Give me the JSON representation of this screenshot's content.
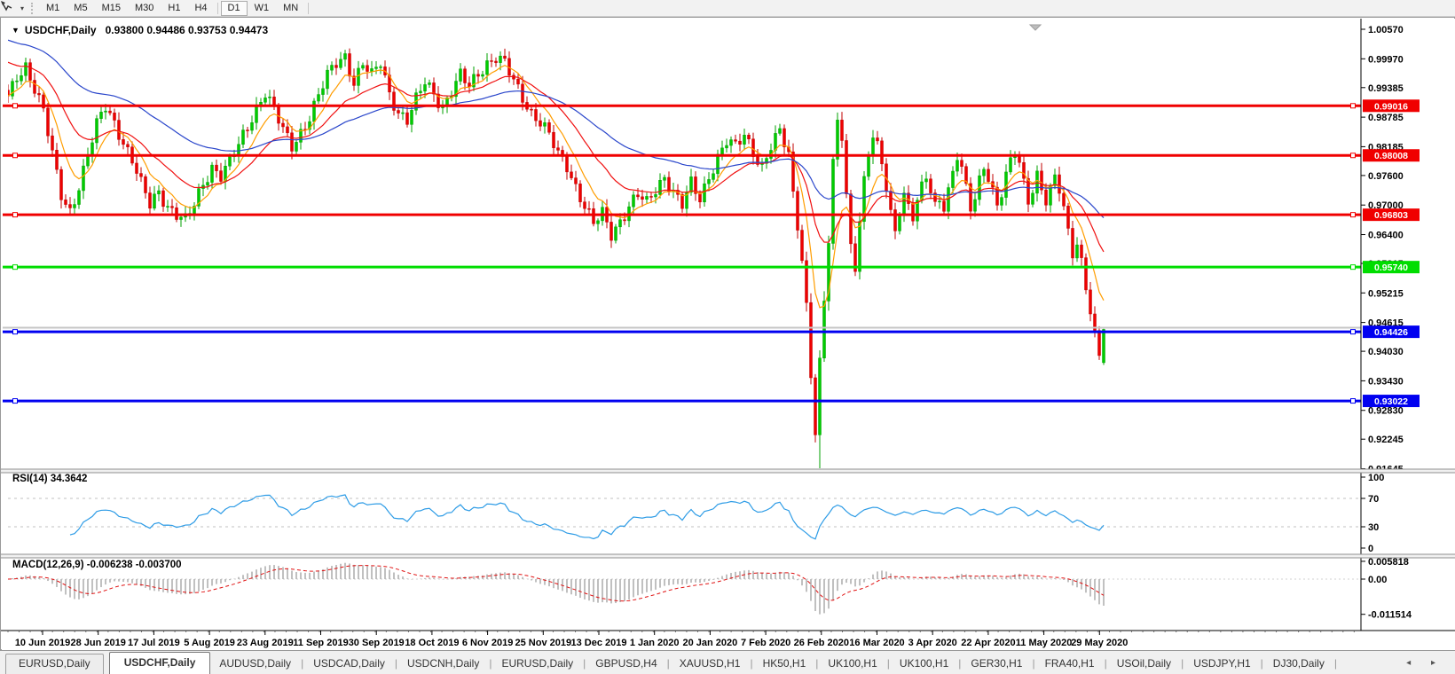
{
  "toolbar": {
    "tool_icon": "crosshair-cursor-icon",
    "timeframes": [
      {
        "label": "M1",
        "active": false
      },
      {
        "label": "M5",
        "active": false
      },
      {
        "label": "M15",
        "active": false
      },
      {
        "label": "M30",
        "active": false
      },
      {
        "label": "H1",
        "active": false
      },
      {
        "label": "H4",
        "active": false
      },
      {
        "label": "D1",
        "active": true
      },
      {
        "label": "W1",
        "active": false
      },
      {
        "label": "MN",
        "active": false
      }
    ]
  },
  "chart": {
    "symbol_caret": "▼",
    "title_symbol": "USDCHF,Daily",
    "ohlc_text": "0.93800 0.94486 0.93753 0.94473",
    "price_axis_ticks": [
      "1.00570",
      "0.99970",
      "0.99385",
      "0.98785",
      "0.98185",
      "0.97600",
      "0.97000",
      "0.96400",
      "0.95815",
      "0.95215",
      "0.94615",
      "0.94030",
      "0.93430",
      "0.92830",
      "0.92245",
      "0.91645"
    ],
    "date_labels": [
      "10 Jun 2019",
      "28 Jun 2019",
      "17 Jul 2019",
      "5 Aug 2019",
      "23 Aug 2019",
      "11 Sep 2019",
      "30 Sep 2019",
      "18 Oct 2019",
      "6 Nov 2019",
      "25 Nov 2019",
      "13 Dec 2019",
      "1 Jan 2020",
      "20 Jan 2020",
      "7 Feb 2020",
      "26 Feb 2020",
      "16 Mar 2020",
      "3 Apr 2020",
      "22 Apr 2020",
      "11 May 2020",
      "29 May 2020"
    ],
    "hlines": [
      {
        "price": 0.99016,
        "label": "0.99016",
        "color": "#F00000",
        "kind": "resistance"
      },
      {
        "price": 0.98008,
        "label": "0.98008",
        "color": "#F00000",
        "kind": "resistance"
      },
      {
        "price": 0.96803,
        "label": "0.96803",
        "color": "#F00000",
        "kind": "resistance"
      },
      {
        "price": 0.9574,
        "label": "0.95740",
        "color": "#00DD00",
        "kind": "support"
      },
      {
        "price": 0.94426,
        "label": "0.94426",
        "color": "#0000F0",
        "kind": "support"
      },
      {
        "price": 0.93022,
        "label": "0.93022",
        "color": "#0000F0",
        "kind": "support"
      }
    ],
    "bid_line_price": 0.9451
  },
  "rsi": {
    "label": "RSI(14)",
    "value": "34.3642",
    "axis_ticks": [
      {
        "v": 100,
        "label": "100"
      },
      {
        "v": 70,
        "label": "70"
      },
      {
        "v": 30,
        "label": "30"
      },
      {
        "v": 0,
        "label": "0"
      }
    ],
    "dashed_levels": [
      70,
      30
    ]
  },
  "macd": {
    "label": "MACD(12,26,9)",
    "values_text": "-0.006238 -0.003700",
    "axis_ticks": [
      {
        "v": 0.005818,
        "label": "0.005818"
      },
      {
        "v": 0,
        "label": "0.00"
      },
      {
        "v": -0.011514,
        "label": "-0.011514"
      }
    ]
  },
  "tabs": [
    {
      "label": "EURUSD,Daily",
      "active": false
    },
    {
      "label": "USDCHF,Daily",
      "active": true
    },
    {
      "label": "AUDUSD,Daily",
      "active": false
    },
    {
      "label": "USDCAD,Daily",
      "active": false
    },
    {
      "label": "USDCNH,Daily",
      "active": false
    },
    {
      "label": "EURUSD,Daily",
      "active": false
    },
    {
      "label": "GBPUSD,H4",
      "active": false
    },
    {
      "label": "XAUUSD,H1",
      "active": false
    },
    {
      "label": "HK50,H1",
      "active": false
    },
    {
      "label": "UK100,H1",
      "active": false
    },
    {
      "label": "UK100,H1",
      "active": false
    },
    {
      "label": "GER30,H1",
      "active": false
    },
    {
      "label": "FRA40,H1",
      "active": false
    },
    {
      "label": "USOil,Daily",
      "active": false
    },
    {
      "label": "USDJPY,H1",
      "active": false
    },
    {
      "label": "DJ30,Daily",
      "active": false
    }
  ],
  "tab_arrows": "◂ ▸",
  "colors": {
    "up_candle": "#00CC00",
    "up_stroke": "#00A000",
    "down_candle": "#EE0000",
    "down_stroke": "#C00000",
    "ma_fast": "#FF9D00",
    "ma_mid": "#F01010",
    "ma_slow": "#2B47CB",
    "rsi_line": "#2E9CE6",
    "rsi_level": "#C0C0C0",
    "macd_hist": "#A6A6A6",
    "macd_signal": "#E01010",
    "bid_line": "#C6C6C6",
    "axis": "#000000",
    "shift_marker": "#BDBDBD"
  },
  "chart_data": {
    "type": "candlestick",
    "symbol": "USDCHF",
    "timeframe": "Daily",
    "title": "USDCHF,Daily",
    "x_range_dates": [
      "10 Jun 2019",
      "29 May 2020"
    ],
    "y_range": [
      0.91645,
      1.0057
    ],
    "last_candle": {
      "open": 0.938,
      "high": 0.94486,
      "low": 0.93753,
      "close": 0.94473
    },
    "extreme_low": 0.91655,
    "close_path": [
      [
        8,
        0.9915
      ],
      [
        18,
        0.996
      ],
      [
        28,
        0.9985
      ],
      [
        38,
        0.994
      ],
      [
        48,
        0.989
      ],
      [
        58,
        0.98
      ],
      [
        68,
        0.972
      ],
      [
        78,
        0.969
      ],
      [
        88,
        0.974
      ],
      [
        98,
        0.98
      ],
      [
        108,
        0.986
      ],
      [
        118,
        0.99
      ],
      [
        128,
        0.987
      ],
      [
        138,
        0.983
      ],
      [
        148,
        0.979
      ],
      [
        158,
        0.974
      ],
      [
        168,
        0.97
      ],
      [
        178,
        0.973
      ],
      [
        188,
        0.97
      ],
      [
        198,
        0.968
      ],
      [
        208,
        0.9665
      ],
      [
        218,
        0.97
      ],
      [
        228,
        0.9745
      ],
      [
        238,
        0.978
      ],
      [
        248,
        0.976
      ],
      [
        258,
        0.9785
      ],
      [
        268,
        0.982
      ],
      [
        278,
        0.986
      ],
      [
        288,
        0.99
      ],
      [
        298,
        0.993
      ],
      [
        308,
        0.989
      ],
      [
        318,
        0.985
      ],
      [
        328,
        0.982
      ],
      [
        338,
        0.985
      ],
      [
        348,
        0.988
      ],
      [
        358,
        0.992
      ],
      [
        368,
        0.996
      ],
      [
        378,
        0.999
      ],
      [
        388,
        1.0005
      ],
      [
        398,
        0.995
      ],
      [
        408,
        0.9985
      ],
      [
        418,
        0.996
      ],
      [
        428,
        0.999
      ],
      [
        438,
        0.993
      ],
      [
        448,
        0.989
      ],
      [
        458,
        0.987
      ],
      [
        468,
        0.991
      ],
      [
        478,
        0.995
      ],
      [
        488,
        0.993
      ],
      [
        498,
        0.99
      ],
      [
        508,
        0.993
      ],
      [
        518,
        0.996
      ],
      [
        528,
        0.994
      ],
      [
        538,
        0.997
      ],
      [
        548,
        0.999
      ],
      [
        558,
        1.0
      ],
      [
        568,
        0.9985
      ],
      [
        578,
        0.995
      ],
      [
        588,
        0.992
      ],
      [
        598,
        0.989
      ],
      [
        608,
        0.987
      ],
      [
        618,
        0.984
      ],
      [
        628,
        0.98
      ],
      [
        638,
        0.978
      ],
      [
        648,
        0.974
      ],
      [
        658,
        0.97
      ],
      [
        668,
        0.966
      ],
      [
        678,
        0.968
      ],
      [
        688,
        0.964
      ],
      [
        698,
        0.967
      ],
      [
        708,
        0.97
      ],
      [
        718,
        0.972
      ],
      [
        728,
        0.97
      ],
      [
        738,
        0.973
      ],
      [
        748,
        0.976
      ],
      [
        758,
        0.973
      ],
      [
        768,
        0.97
      ],
      [
        778,
        0.974
      ],
      [
        788,
        0.971
      ],
      [
        798,
        0.976
      ],
      [
        808,
        0.98
      ],
      [
        818,
        0.983
      ],
      [
        828,
        0.9815
      ],
      [
        838,
        0.984
      ],
      [
        848,
        0.981
      ],
      [
        858,
        0.978
      ],
      [
        868,
        0.982
      ],
      [
        878,
        0.9845
      ],
      [
        888,
        0.98
      ],
      [
        893,
        0.972
      ],
      [
        900,
        0.964
      ],
      [
        906,
        0.955
      ],
      [
        911,
        0.942
      ],
      [
        915,
        0.93
      ],
      [
        919,
        0.922
      ],
      [
        922,
        0.935
      ],
      [
        926,
        0.945
      ],
      [
        930,
        0.955
      ],
      [
        934,
        0.965
      ],
      [
        938,
        0.978
      ],
      [
        942,
        0.986
      ],
      [
        946,
        0.989
      ],
      [
        950,
        0.98
      ],
      [
        954,
        0.97
      ],
      [
        958,
        0.962
      ],
      [
        962,
        0.956
      ],
      [
        966,
        0.964
      ],
      [
        970,
        0.97
      ],
      [
        974,
        0.976
      ],
      [
        978,
        0.98
      ],
      [
        982,
        0.984
      ],
      [
        987,
        0.982
      ],
      [
        992,
        0.979
      ],
      [
        997,
        0.975
      ],
      [
        1002,
        0.97
      ],
      [
        1007,
        0.964
      ],
      [
        1012,
        0.969
      ],
      [
        1017,
        0.973
      ],
      [
        1022,
        0.97
      ],
      [
        1027,
        0.9665
      ],
      [
        1032,
        0.97
      ],
      [
        1039,
        0.9735
      ],
      [
        1044,
        0.976
      ],
      [
        1049,
        0.9725
      ],
      [
        1054,
        0.9695
      ],
      [
        1059,
        0.972
      ],
      [
        1064,
        0.97
      ],
      [
        1069,
        0.974
      ],
      [
        1074,
        0.977
      ],
      [
        1079,
        0.9805
      ],
      [
        1084,
        0.976
      ],
      [
        1089,
        0.972
      ],
      [
        1094,
        0.9685
      ],
      [
        1099,
        0.972
      ],
      [
        1104,
        0.976
      ],
      [
        1109,
        0.979
      ],
      [
        1114,
        0.9755
      ],
      [
        1119,
        0.9725
      ],
      [
        1124,
        0.9695
      ],
      [
        1129,
        0.973
      ],
      [
        1134,
        0.976
      ],
      [
        1139,
        0.979
      ],
      [
        1144,
        0.981
      ],
      [
        1149,
        0.9775
      ],
      [
        1154,
        0.974
      ],
      [
        1159,
        0.971
      ],
      [
        1164,
        0.974
      ],
      [
        1169,
        0.977
      ],
      [
        1174,
        0.973
      ],
      [
        1179,
        0.97
      ],
      [
        1184,
        0.973
      ],
      [
        1189,
        0.976
      ],
      [
        1194,
        0.972
      ],
      [
        1199,
        0.968
      ],
      [
        1204,
        0.964
      ],
      [
        1209,
        0.96
      ],
      [
        1214,
        0.963
      ],
      [
        1219,
        0.958
      ],
      [
        1224,
        0.953
      ],
      [
        1229,
        0.947
      ],
      [
        1234,
        0.942
      ],
      [
        1239,
        0.9385
      ],
      [
        1241,
        0.9375
      ],
      [
        1243,
        0.9447
      ]
    ],
    "moving_averages": [
      {
        "name": "fast",
        "period": 8,
        "color_key": "ma_fast"
      },
      {
        "name": "mid",
        "period": 21,
        "color_key": "ma_mid"
      },
      {
        "name": "slow",
        "period": 55,
        "color_key": "ma_slow"
      }
    ],
    "indicators": [
      {
        "name": "RSI",
        "params": "14",
        "last_value": 34.3642
      },
      {
        "name": "MACD",
        "params": "12,26,9",
        "last_values": [
          -0.006238,
          -0.0037
        ]
      }
    ]
  }
}
